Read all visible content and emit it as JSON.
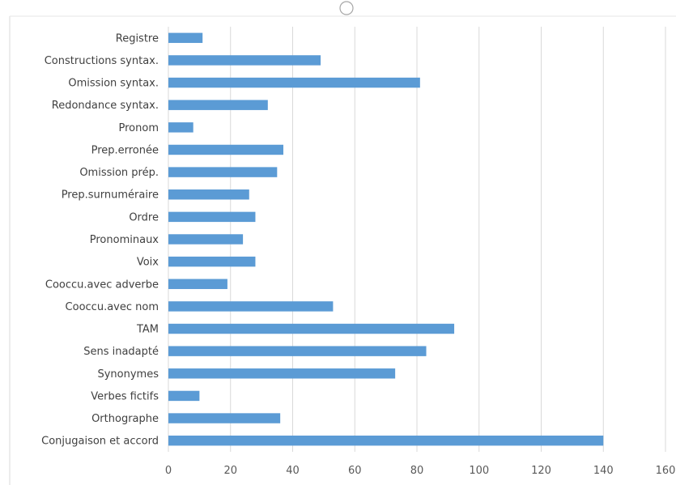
{
  "chart_data": {
    "type": "bar",
    "orientation": "horizontal",
    "categories": [
      "Registre",
      "Constructions syntax.",
      "Omission syntax.",
      "Redondance syntax.",
      "Pronom",
      "Prep.erronée",
      "Omission prép.",
      "Prep.surnuméraire",
      "Ordre",
      "Pronominaux",
      "Voix",
      "Cooccu.avec adverbe",
      "Cooccu.avec nom",
      "TAM",
      "Sens inadapté",
      "Synonymes",
      "Verbes fictifs",
      "Orthographe",
      "Conjugaison et accord"
    ],
    "values": [
      11,
      49,
      81,
      32,
      8,
      37,
      35,
      26,
      28,
      24,
      28,
      19,
      53,
      92,
      83,
      73,
      10,
      36,
      140
    ],
    "xlim": [
      0,
      160
    ],
    "xticks": [
      "0",
      "20",
      "40",
      "60",
      "80",
      "100",
      "120",
      "140",
      "160"
    ],
    "title": "",
    "xlabel": "",
    "ylabel": "",
    "grid": "vertical",
    "legend": "none",
    "bar_color": "#5b9bd5",
    "grid_color": "#d9d9d9",
    "label_color": "#404040"
  }
}
